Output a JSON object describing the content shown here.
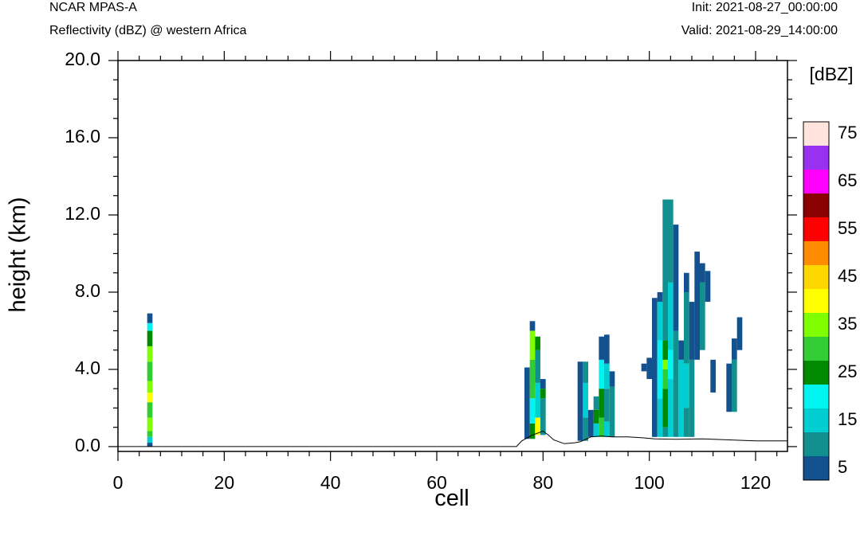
{
  "header": {
    "model": "NCAR MPAS-A",
    "field": "Reflectivity (dBZ) @ western Africa",
    "init": "Init: 2021-08-27_00:00:00",
    "valid": "Valid: 2021-08-29_14:00:00"
  },
  "chart_data": {
    "type": "heatmap",
    "title": "Reflectivity (dBZ) @ western Africa",
    "xlabel": "cell",
    "ylabel": "height (km)",
    "xlim": [
      0,
      126
    ],
    "ylim": [
      -0.25,
      20.0
    ],
    "xticks": [
      "0",
      "20",
      "40",
      "60",
      "80",
      "100",
      "120"
    ],
    "yticks": [
      "0.0",
      "4.0",
      "8.0",
      "12.0",
      "16.0",
      "20.0"
    ],
    "colorbar": {
      "unit": "[dBZ]",
      "levels": [
        5,
        10,
        15,
        20,
        25,
        30,
        35,
        40,
        45,
        50,
        55,
        60,
        65,
        70,
        75
      ],
      "colors": [
        "#13518f",
        "#12908f",
        "#00ced1",
        "#00f5f0",
        "#008a00",
        "#32cd32",
        "#7fff00",
        "#ffff00",
        "#ffd700",
        "#ff8c00",
        "#ff0000",
        "#8b0000",
        "#ff00ff",
        "#9932f0",
        "#ffe3dc"
      ],
      "labels": [
        "5",
        "15",
        "25",
        "35",
        "45",
        "55",
        "65",
        "75"
      ]
    },
    "terrain": [
      [
        0,
        0
      ],
      [
        75,
        0
      ],
      [
        76,
        0.3
      ],
      [
        78,
        0.6
      ],
      [
        80,
        0.8
      ],
      [
        81,
        0.6
      ],
      [
        82,
        0.35
      ],
      [
        84,
        0.15
      ],
      [
        86,
        0.2
      ],
      [
        87,
        0.25
      ],
      [
        89,
        0.5
      ],
      [
        91,
        0.55
      ],
      [
        93,
        0.5
      ],
      [
        96,
        0.5
      ],
      [
        99,
        0.45
      ],
      [
        101,
        0.4
      ],
      [
        105,
        0.38
      ],
      [
        110,
        0.4
      ],
      [
        115,
        0.35
      ],
      [
        120,
        0.3
      ],
      [
        126,
        0.3
      ]
    ],
    "columns": [
      {
        "x": 6,
        "segments": [
          [
            0.0,
            0.2,
            5
          ],
          [
            0.2,
            0.5,
            15
          ],
          [
            0.5,
            0.8,
            30
          ],
          [
            0.8,
            1.5,
            35
          ],
          [
            1.5,
            2.3,
            30
          ],
          [
            2.3,
            2.8,
            40
          ],
          [
            2.8,
            3.4,
            35
          ],
          [
            3.4,
            4.4,
            30
          ],
          [
            4.4,
            5.2,
            35
          ],
          [
            5.2,
            6.0,
            25
          ],
          [
            6.0,
            6.4,
            20
          ],
          [
            6.4,
            6.9,
            5
          ]
        ]
      },
      {
        "x": 77,
        "segments": [
          [
            0.4,
            4.1,
            5
          ]
        ]
      },
      {
        "x": 78,
        "segments": [
          [
            0.4,
            1.2,
            25
          ],
          [
            1.2,
            2.5,
            20
          ],
          [
            2.5,
            4.5,
            30
          ],
          [
            4.5,
            6.0,
            35
          ],
          [
            6.0,
            6.5,
            5
          ]
        ]
      },
      {
        "x": 79,
        "segments": [
          [
            0.6,
            1.5,
            40
          ],
          [
            1.5,
            3.3,
            15
          ],
          [
            3.3,
            5.0,
            10
          ],
          [
            5.0,
            5.7,
            25
          ]
        ]
      },
      {
        "x": 80,
        "segments": [
          [
            0.6,
            2.5,
            10
          ],
          [
            2.5,
            3.0,
            25
          ],
          [
            3.0,
            3.5,
            5
          ]
        ]
      },
      {
        "x": 87,
        "segments": [
          [
            0.3,
            4.4,
            5
          ]
        ]
      },
      {
        "x": 88,
        "segments": [
          [
            0.3,
            1.5,
            10
          ],
          [
            1.5,
            3.3,
            15
          ],
          [
            3.3,
            4.4,
            10
          ]
        ]
      },
      {
        "x": 89,
        "segments": [
          [
            0.5,
            1.9,
            5
          ]
        ]
      },
      {
        "x": 90,
        "segments": [
          [
            0.5,
            1.2,
            15
          ],
          [
            1.2,
            1.9,
            25
          ],
          [
            1.9,
            2.6,
            10
          ]
        ]
      },
      {
        "x": 91,
        "segments": [
          [
            0.5,
            1.5,
            30
          ],
          [
            1.5,
            3.0,
            25
          ],
          [
            3.0,
            4.5,
            20
          ],
          [
            4.5,
            5.7,
            5
          ]
        ]
      },
      {
        "x": 92,
        "segments": [
          [
            0.5,
            1.3,
            15
          ],
          [
            1.3,
            3.0,
            10
          ],
          [
            3.0,
            4.3,
            15
          ],
          [
            4.3,
            5.8,
            5
          ]
        ]
      },
      {
        "x": 93,
        "segments": [
          [
            0.5,
            3.1,
            10
          ],
          [
            3.1,
            3.9,
            5
          ]
        ]
      },
      {
        "x": 99,
        "segments": [
          [
            3.9,
            4.3,
            5
          ]
        ]
      },
      {
        "x": 100,
        "segments": [
          [
            3.5,
            4.6,
            5
          ]
        ]
      },
      {
        "x": 101,
        "segments": [
          [
            0.5,
            7.7,
            5
          ]
        ]
      },
      {
        "x": 102,
        "segments": [
          [
            0.5,
            2.5,
            15
          ],
          [
            2.5,
            5.5,
            20
          ],
          [
            5.5,
            7.5,
            15
          ],
          [
            7.5,
            8.0,
            5
          ]
        ]
      },
      {
        "x": 103,
        "segments": [
          [
            0.5,
            1.0,
            10
          ],
          [
            1.0,
            3.0,
            25
          ],
          [
            3.0,
            4.0,
            30
          ],
          [
            4.0,
            4.5,
            35
          ],
          [
            4.5,
            5.5,
            25
          ],
          [
            5.5,
            12.8,
            10
          ]
        ]
      },
      {
        "x": 104,
        "segments": [
          [
            0.5,
            3.5,
            15
          ],
          [
            3.5,
            5.0,
            20
          ],
          [
            5.0,
            8.5,
            15
          ],
          [
            8.5,
            12.8,
            10
          ]
        ]
      },
      {
        "x": 105,
        "segments": [
          [
            0.5,
            6.0,
            10
          ],
          [
            6.0,
            11.5,
            5
          ]
        ]
      },
      {
        "x": 106,
        "segments": [
          [
            0.5,
            4.5,
            15
          ],
          [
            4.5,
            5.5,
            5
          ]
        ]
      },
      {
        "x": 107,
        "segments": [
          [
            0.5,
            2.0,
            10
          ],
          [
            2.0,
            4.3,
            15
          ],
          [
            4.3,
            8.0,
            10
          ],
          [
            8.0,
            9.0,
            5
          ]
        ]
      },
      {
        "x": 108,
        "segments": [
          [
            0.5,
            4.5,
            10
          ],
          [
            4.5,
            7.5,
            5
          ]
        ]
      },
      {
        "x": 109,
        "segments": [
          [
            4.5,
            10.1,
            5
          ]
        ]
      },
      {
        "x": 110,
        "segments": [
          [
            5.0,
            8.5,
            10
          ],
          [
            8.5,
            9.5,
            5
          ]
        ]
      },
      {
        "x": 111,
        "segments": [
          [
            7.5,
            9.1,
            5
          ]
        ]
      },
      {
        "x": 112,
        "segments": [
          [
            2.8,
            4.5,
            5
          ]
        ]
      },
      {
        "x": 115,
        "segments": [
          [
            1.8,
            4.3,
            5
          ]
        ]
      },
      {
        "x": 116,
        "segments": [
          [
            1.8,
            4.5,
            10
          ],
          [
            4.5,
            5.6,
            5
          ]
        ]
      },
      {
        "x": 117,
        "segments": [
          [
            5.0,
            6.7,
            5
          ]
        ]
      }
    ]
  }
}
